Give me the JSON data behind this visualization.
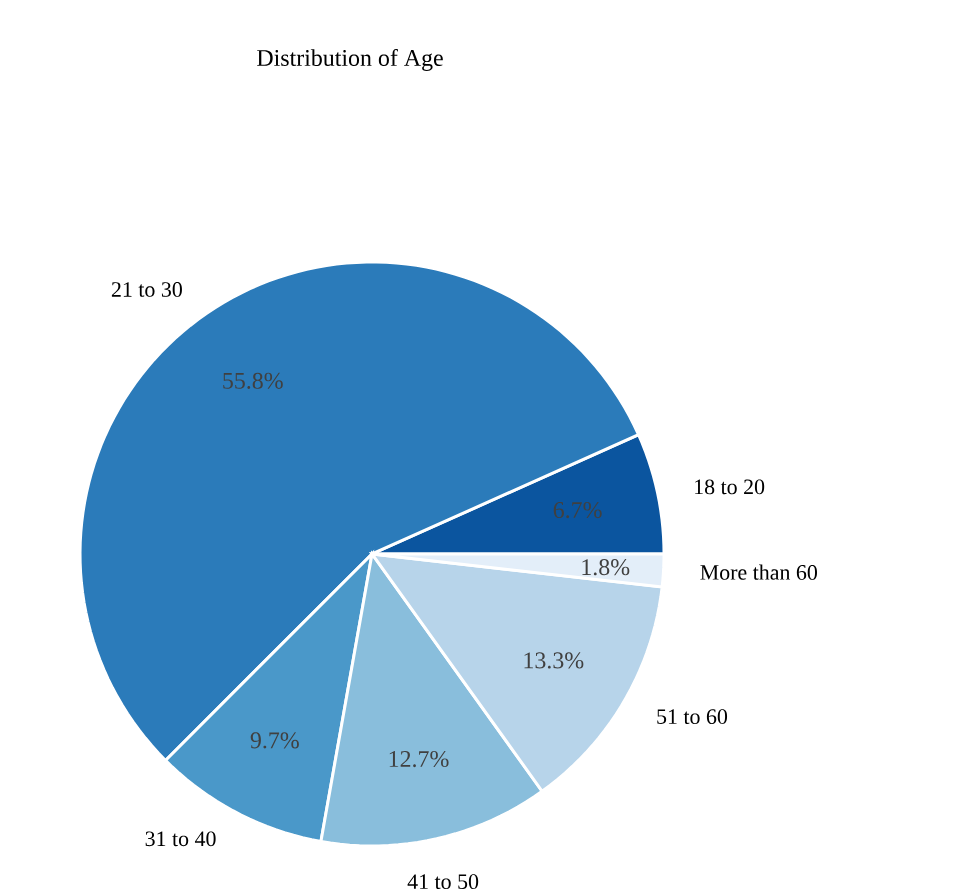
{
  "chart_data": {
    "type": "pie",
    "title": "Distribution of Age",
    "categories": [
      "18 to 20",
      "21 to 30",
      "31 to 40",
      "41 to 50",
      "51 to 60",
      "More than 60"
    ],
    "values": [
      6.7,
      55.8,
      9.7,
      12.7,
      13.3,
      1.8
    ],
    "value_labels": [
      "6.7%",
      "55.8%",
      "9.7%",
      "12.7%",
      "13.3%",
      "1.8%"
    ],
    "colors": [
      "#0b559f",
      "#2b7bba",
      "#4a98c9",
      "#89bedc",
      "#b7d4ea",
      "#e3eef9"
    ]
  }
}
